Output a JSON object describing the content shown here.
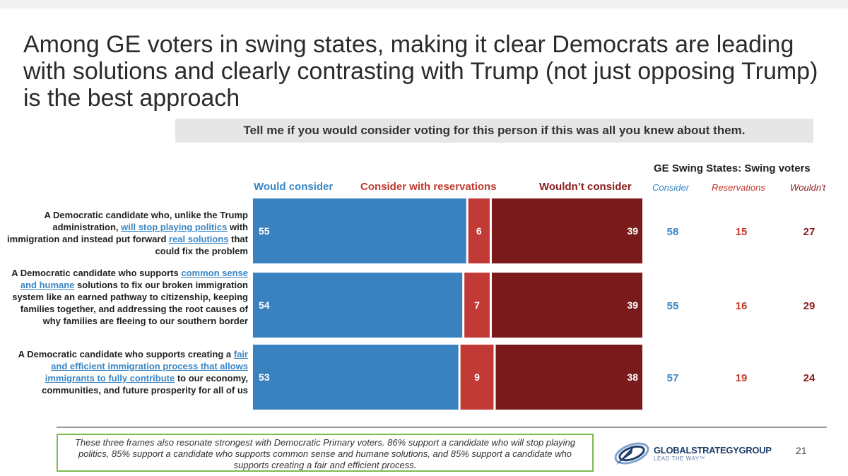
{
  "title": "Among GE voters in swing states, making it clear Democrats are leading with solutions and clearly contrasting with Trump (not just opposing Trump) is the best approach",
  "subtitle": "Tell me if you would consider voting for this person if this was all you knew about them.",
  "swing": {
    "header": "GE Swing States: Swing voters",
    "col_consider": "Consider",
    "col_reservations": "Reservations",
    "col_wouldnt": "Wouldn't"
  },
  "rows": [
    {
      "label_parts": [
        {
          "t": "A Democratic candidate who, unlike the Trump administration, "
        },
        {
          "t": "will stop playing politics",
          "hl": true
        },
        {
          "t": " with immigration and instead put forward "
        },
        {
          "t": "real solutions",
          "hl": true
        },
        {
          "t": " that could fix the problem"
        }
      ],
      "swing_values": [
        58,
        15,
        27
      ]
    },
    {
      "label_parts": [
        {
          "t": "A Democratic candidate who supports "
        },
        {
          "t": "common sense and humane",
          "hl": true
        },
        {
          "t": " solutions to fix our broken immigration system like an earned pathway to citizenship, keeping families together, and addressing the root causes of why families are fleeing to our southern border"
        }
      ],
      "swing_values": [
        55,
        16,
        29
      ]
    },
    {
      "label_parts": [
        {
          "t": "A Democratic candidate who supports creating a "
        },
        {
          "t": "fair and efficient immigration process that allows immigrants to fully contribute",
          "hl": true
        },
        {
          "t": " to our economy, communities, and future prosperity for all of us"
        }
      ],
      "swing_values": [
        57,
        19,
        24
      ]
    }
  ],
  "chart_data": {
    "type": "bar",
    "orientation": "horizontal",
    "stacked": true,
    "categories": [
      "A Democratic candidate who, unlike the Trump administration, will stop playing politics with immigration and instead put forward real solutions that could fix the problem",
      "A Democratic candidate who supports common sense and humane solutions to fix our broken immigration system like an earned pathway to citizenship, keeping families together, and addressing the root causes of why families are fleeing to our southern border",
      "A Democratic candidate who supports creating a fair and efficient immigration process that allows immigrants to fully contribute to our economy, communities, and future prosperity for all of us"
    ],
    "series": [
      {
        "name": "Would consider",
        "color": "#3a82bf",
        "values": [
          55,
          54,
          53
        ]
      },
      {
        "name": "Consider with reservations",
        "color": "#c23a36",
        "values": [
          6,
          7,
          9
        ]
      },
      {
        "name": "Wouldn’t consider",
        "color": "#7a1a1a",
        "values": [
          39,
          39,
          38
        ]
      }
    ],
    "xlim": [
      0,
      100
    ]
  },
  "colors": {
    "consider": "#3a86c5",
    "reservations": "#c0392b",
    "wouldnt": "#8b1a1a",
    "note_border": "#7dbb4d"
  },
  "note": "These three frames also resonate strongest with Democratic Primary voters. 86% support a candidate who will stop playing politics, 85% support a candidate who supports common sense and humane solutions, and 85% support a candidate who supports creating a fair and efficient process.",
  "logo": {
    "name": "GLOBALSTRATEGYGROUP",
    "tagline": "LEAD THE WAY™",
    "icon": "global-strategy-group-logo-icon"
  },
  "page_number": "21"
}
